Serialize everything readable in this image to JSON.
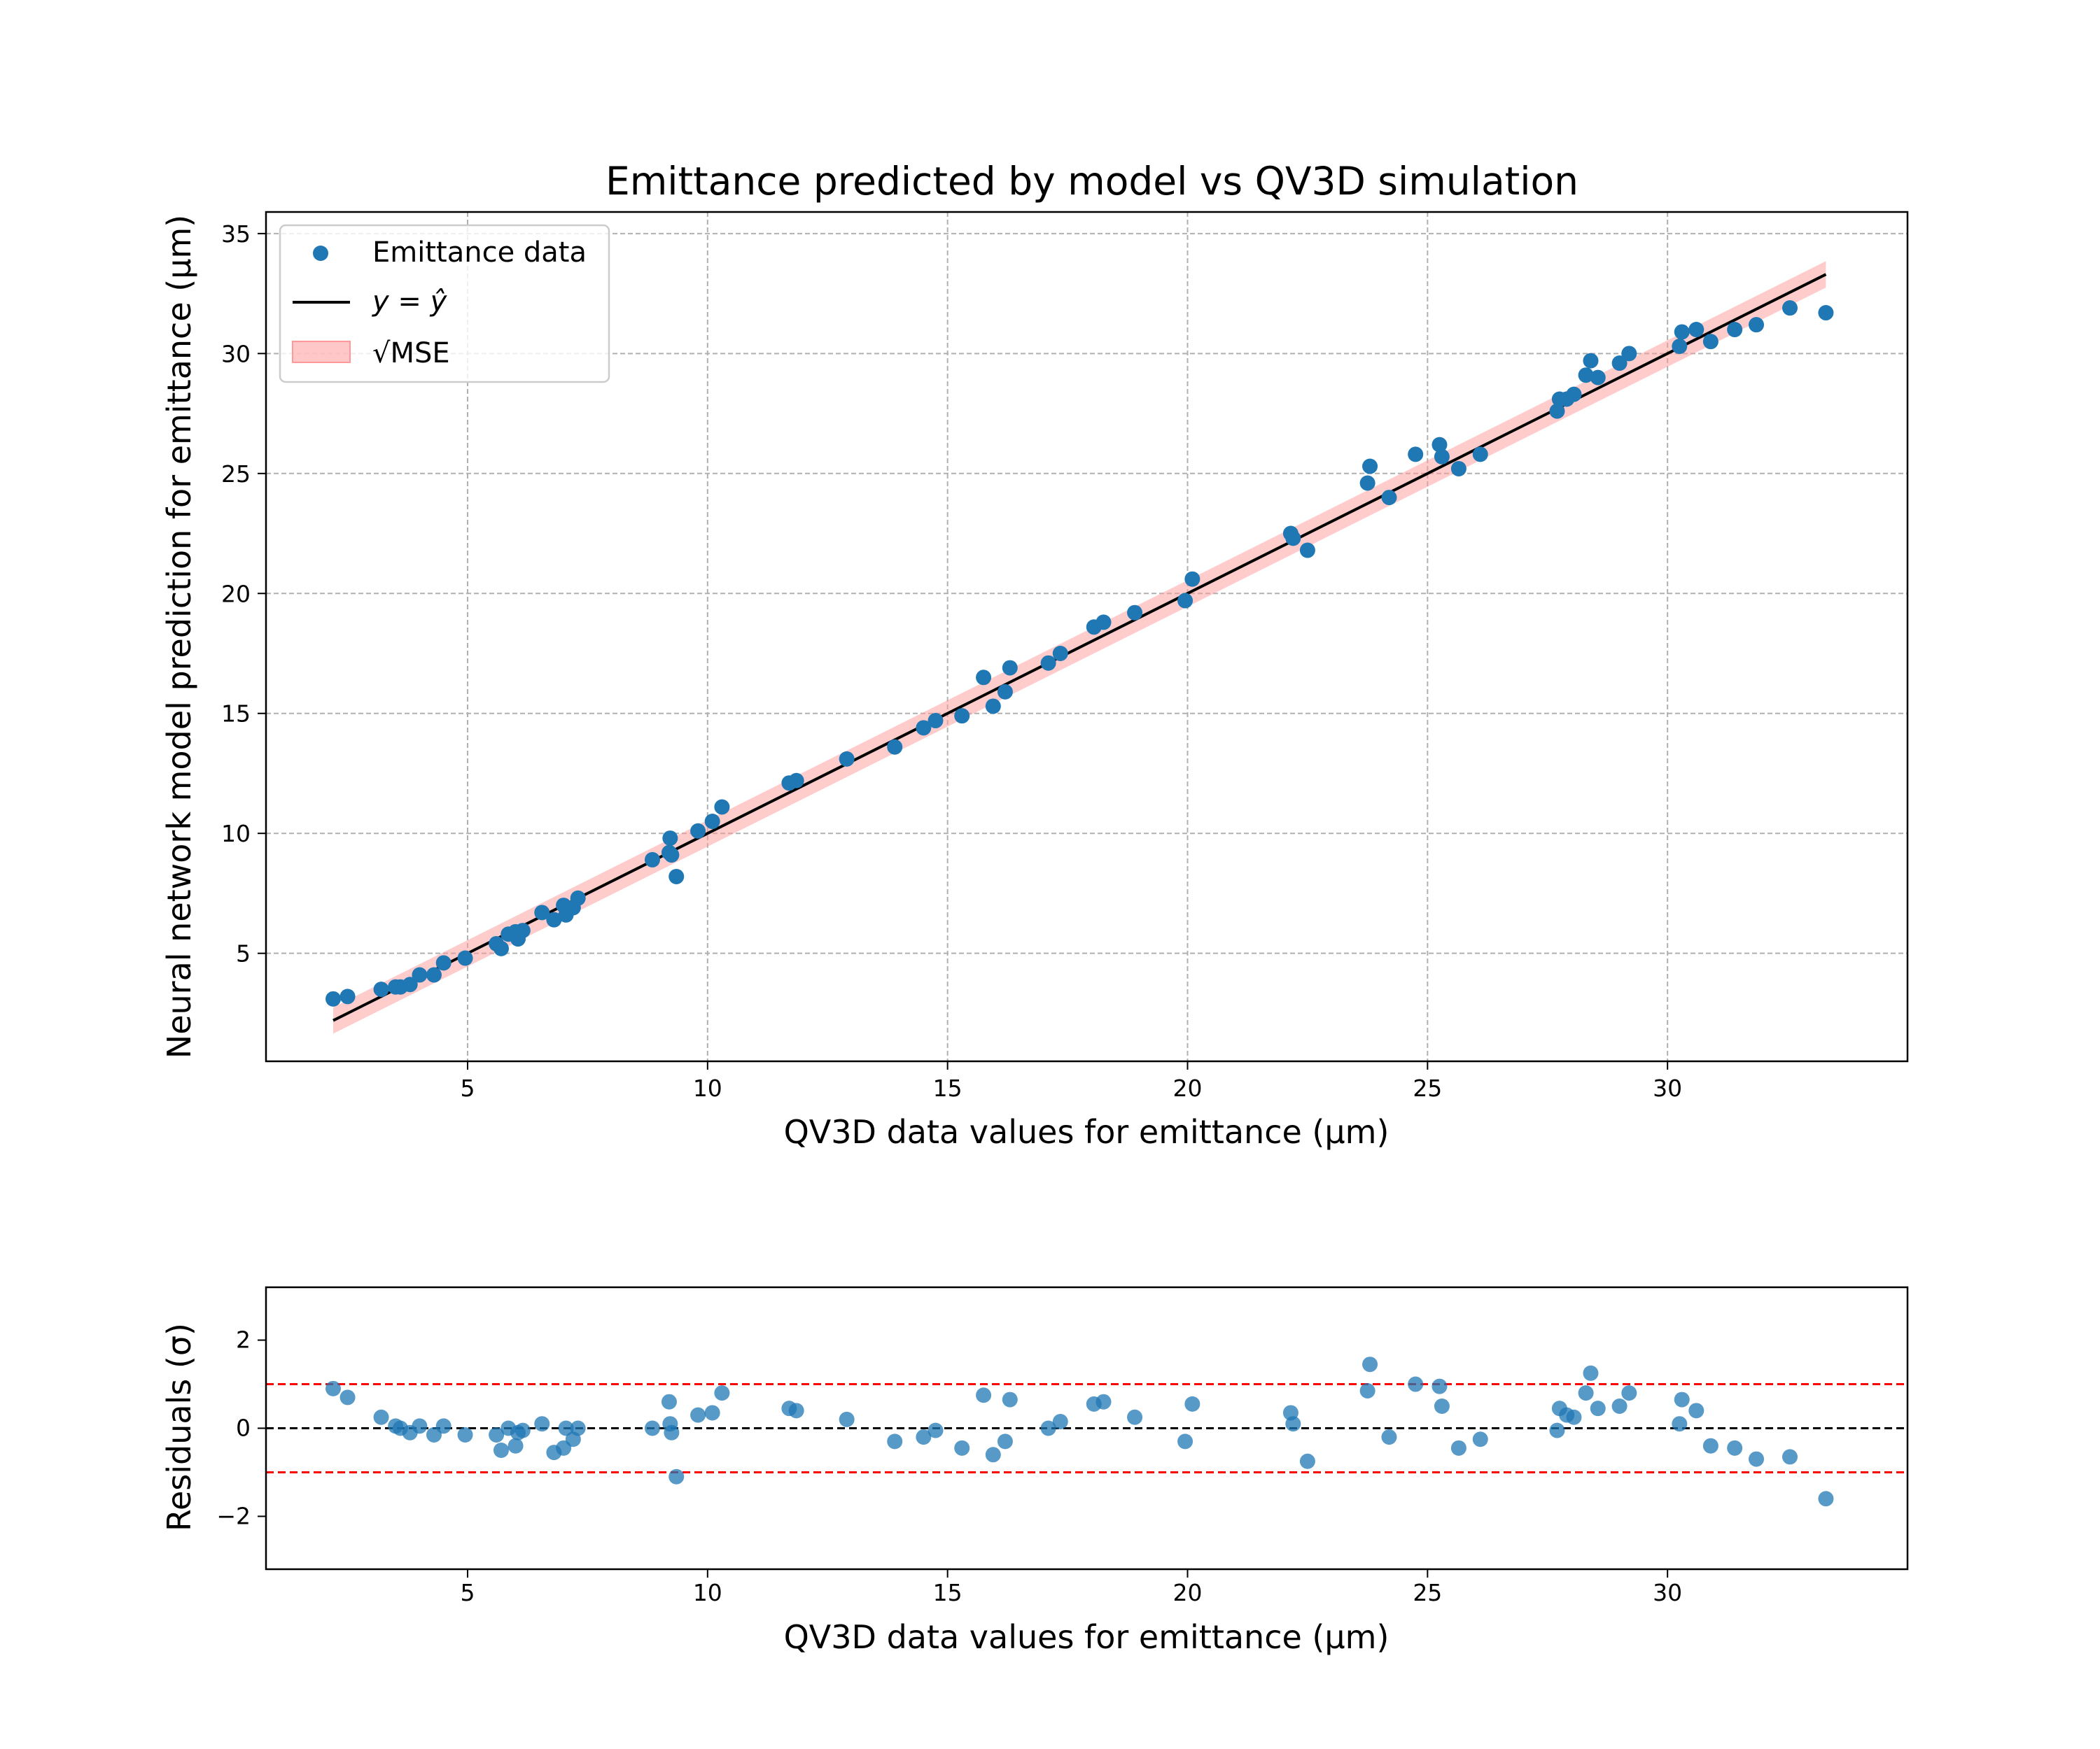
{
  "chart_data": [
    {
      "type": "scatter",
      "title": "Emittance predicted by model vs QV3D simulation",
      "xlabel": "QV3D data values for emittance (μm)",
      "ylabel": "Neural network model prediction for emittance (μm)",
      "xlim": [
        0.8,
        35.0
      ],
      "ylim": [
        0.5,
        35.9
      ],
      "xticks": [
        5,
        10,
        15,
        20,
        25,
        30
      ],
      "yticks": [
        5,
        10,
        15,
        20,
        25,
        30,
        35
      ],
      "grid": true,
      "legend_position": "top-left",
      "legend": [
        "Emittance data",
        "y = ŷ",
        "√MSE"
      ],
      "colors": {
        "points": "#1f77b4",
        "line": "#000000",
        "band": "#ff9999"
      },
      "band_halfwidth": 0.55,
      "identity_line": {
        "x": [
          2.2,
          33.3
        ],
        "y": [
          2.2,
          33.3
        ]
      },
      "series": [
        {
          "name": "Emittance data",
          "x": [
            2.2,
            2.5,
            3.2,
            3.5,
            3.6,
            3.8,
            4.0,
            4.3,
            4.5,
            4.95,
            5.6,
            5.7,
            5.85,
            6.0,
            6.05,
            6.15,
            6.55,
            6.8,
            7.0,
            7.05,
            7.2,
            7.3,
            8.85,
            9.2,
            9.22,
            9.25,
            9.35,
            9.8,
            10.1,
            10.3,
            11.7,
            11.85,
            12.9,
            13.9,
            14.5,
            14.75,
            15.3,
            15.75,
            15.95,
            16.2,
            16.3,
            17.1,
            17.35,
            18.05,
            18.25,
            18.9,
            19.95,
            20.1,
            22.15,
            22.2,
            22.5,
            23.75,
            23.8,
            24.2,
            24.75,
            25.25,
            25.3,
            25.65,
            26.1,
            27.7,
            27.75,
            27.9,
            28.05,
            28.3,
            28.4,
            28.55,
            29.0,
            29.2,
            30.25,
            30.3,
            30.6,
            30.9,
            31.4,
            31.85,
            32.55,
            33.3
          ],
          "y": [
            3.1,
            3.2,
            3.5,
            3.6,
            3.6,
            3.7,
            4.1,
            4.1,
            4.6,
            4.8,
            5.4,
            5.2,
            5.8,
            5.9,
            5.6,
            5.95,
            6.7,
            6.4,
            7.0,
            6.6,
            6.9,
            7.3,
            8.9,
            9.2,
            9.8,
            9.1,
            8.2,
            10.1,
            10.5,
            11.1,
            12.1,
            12.2,
            13.1,
            13.6,
            14.4,
            14.7,
            14.9,
            16.5,
            15.3,
            15.9,
            16.9,
            17.1,
            17.5,
            18.6,
            18.8,
            19.2,
            19.7,
            20.6,
            22.5,
            22.3,
            21.8,
            24.6,
            25.3,
            24.0,
            25.8,
            26.2,
            25.7,
            25.2,
            25.8,
            27.6,
            28.1,
            28.1,
            28.3,
            29.1,
            29.7,
            29.0,
            29.6,
            30.0,
            30.3,
            30.9,
            31.0,
            30.5,
            31.0,
            31.2,
            31.9,
            31.7
          ]
        }
      ]
    },
    {
      "type": "scatter",
      "xlabel": "QV3D data values for emittance (μm)",
      "ylabel": "Residuals (σ)",
      "xlim": [
        0.8,
        35.0
      ],
      "ylim": [
        -3.2,
        3.2
      ],
      "xticks": [
        5,
        10,
        15,
        20,
        25,
        30
      ],
      "yticks": [
        -2,
        0,
        2
      ],
      "grid": false,
      "reference_lines": [
        {
          "y": 1,
          "color": "#ff0000",
          "style": "dashed"
        },
        {
          "y": 0,
          "color": "#000000",
          "style": "dashed"
        },
        {
          "y": -1,
          "color": "#ff0000",
          "style": "dashed"
        }
      ],
      "colors": {
        "points": "#1f77b4"
      },
      "series": [
        {
          "x": [
            2.2,
            2.5,
            3.2,
            3.5,
            3.6,
            3.8,
            4.0,
            4.3,
            4.5,
            4.95,
            5.6,
            5.7,
            5.85,
            6.0,
            6.05,
            6.15,
            6.55,
            6.8,
            7.0,
            7.05,
            7.2,
            7.3,
            8.85,
            9.2,
            9.22,
            9.25,
            9.35,
            9.8,
            10.1,
            10.3,
            11.7,
            11.85,
            12.9,
            13.9,
            14.5,
            14.75,
            15.3,
            15.75,
            15.95,
            16.2,
            16.3,
            17.1,
            17.35,
            18.05,
            18.25,
            18.9,
            19.95,
            20.1,
            22.15,
            22.2,
            22.5,
            23.75,
            23.8,
            24.2,
            24.75,
            25.25,
            25.3,
            25.65,
            26.1,
            27.7,
            27.75,
            27.9,
            28.05,
            28.3,
            28.4,
            28.55,
            29.0,
            29.2,
            30.25,
            30.3,
            30.6,
            30.9,
            31.4,
            31.85,
            32.55,
            33.3
          ],
          "y": [
            0.9,
            0.7,
            0.25,
            0.05,
            0.0,
            -0.1,
            0.05,
            -0.15,
            0.05,
            -0.15,
            -0.15,
            -0.5,
            0.0,
            -0.4,
            -0.1,
            -0.05,
            0.1,
            -0.55,
            -0.45,
            0.0,
            -0.25,
            0.0,
            0.0,
            0.6,
            0.1,
            -0.1,
            -1.1,
            0.3,
            0.35,
            0.8,
            0.45,
            0.4,
            0.2,
            -0.3,
            -0.2,
            -0.05,
            -0.45,
            0.75,
            -0.6,
            -0.3,
            0.65,
            0.0,
            0.15,
            0.55,
            0.6,
            0.25,
            -0.3,
            0.55,
            0.35,
            0.1,
            -0.75,
            0.85,
            1.45,
            -0.2,
            1.0,
            0.95,
            0.5,
            -0.45,
            -0.25,
            -0.05,
            0.45,
            0.3,
            0.25,
            0.8,
            1.25,
            0.45,
            0.5,
            0.8,
            0.1,
            0.65,
            0.4,
            -0.4,
            -0.45,
            -0.7,
            -0.65,
            -1.6
          ]
        }
      ]
    }
  ]
}
